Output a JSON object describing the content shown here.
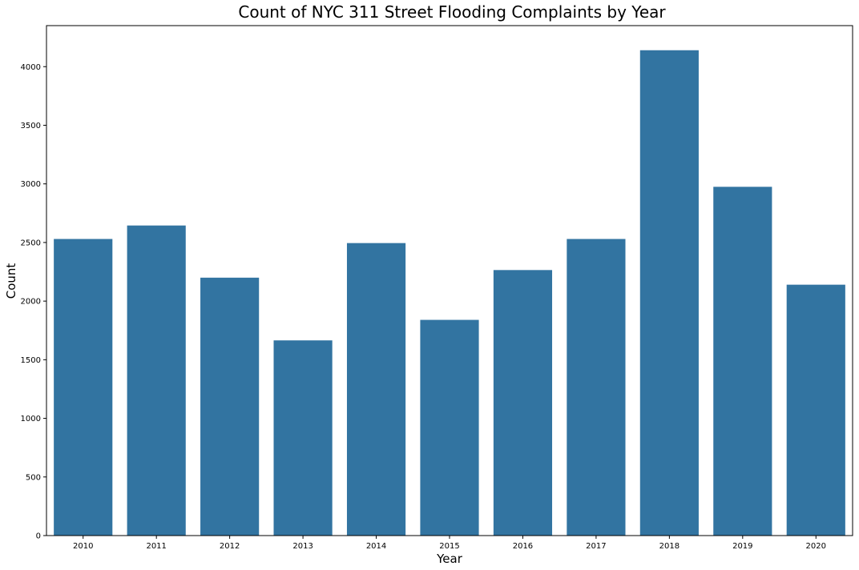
{
  "chart_data": {
    "type": "bar",
    "title": "Count of NYC 311 Street Flooding Complaints by Year",
    "xlabel": "Year",
    "ylabel": "Count",
    "categories": [
      "2010",
      "2011",
      "2012",
      "2013",
      "2014",
      "2015",
      "2016",
      "2017",
      "2018",
      "2019",
      "2020"
    ],
    "values": [
      2530,
      2645,
      2200,
      1665,
      2495,
      1840,
      2265,
      2530,
      4140,
      2975,
      2140
    ],
    "ylim": [
      0,
      4350
    ],
    "yticks": [
      0,
      500,
      1000,
      1500,
      2000,
      2500,
      3000,
      3500,
      4000
    ],
    "bar_color": "#3274a1",
    "grid": false,
    "legend": "none"
  }
}
